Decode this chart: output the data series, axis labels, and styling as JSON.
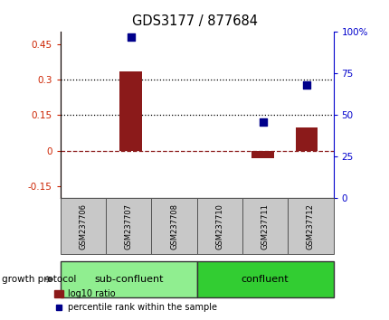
{
  "title": "GDS3177 / 877684",
  "samples": [
    "GSM237706",
    "GSM237707",
    "GSM237708",
    "GSM237710",
    "GSM237711",
    "GSM237712"
  ],
  "log10_ratio": [
    0.0,
    0.335,
    0.0,
    0.0,
    -0.03,
    0.1
  ],
  "percentile_rank": [
    null,
    97,
    null,
    null,
    46,
    68
  ],
  "ylim_left": [
    -0.2,
    0.5
  ],
  "ylim_right": [
    0,
    100
  ],
  "yticks_left": [
    -0.15,
    0.0,
    0.15,
    0.3,
    0.45
  ],
  "yticks_right": [
    0,
    25,
    50,
    75,
    100
  ],
  "bar_color": "#8B1A1A",
  "scatter_color": "#00008B",
  "sub_confluent_color": "#90EE90",
  "confluent_color": "#32CD32",
  "group_label_sub": "sub-confluent",
  "group_label_con": "confluent",
  "protocol_label": "growth protocol",
  "legend_bar_label": "log10 ratio",
  "legend_scatter_label": "percentile rank within the sample",
  "tick_label_color_left": "#CC2200",
  "tick_label_color_right": "#0000CC",
  "bar_width": 0.5,
  "gray_box_color": "#C8C8C8"
}
